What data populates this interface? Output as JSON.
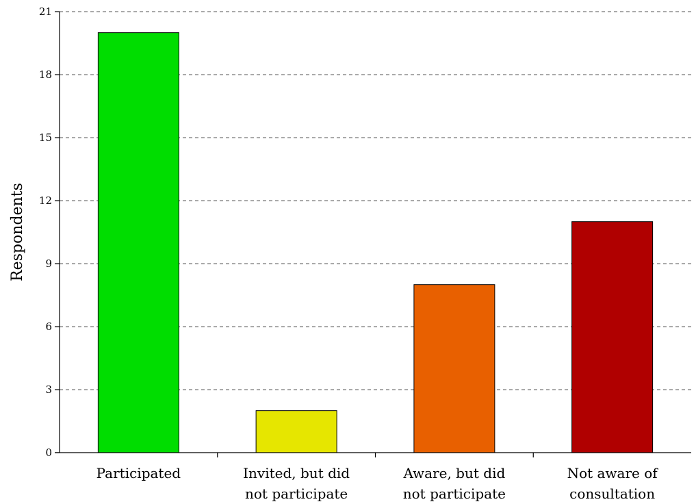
{
  "chart_data": {
    "type": "bar",
    "title": "",
    "xlabel": "",
    "ylabel": "Respondents",
    "ylim": [
      0,
      21
    ],
    "yticks": [
      0,
      3,
      6,
      9,
      12,
      15,
      18,
      21
    ],
    "grid": true,
    "categories": [
      [
        "Participated"
      ],
      [
        "Invited, but did",
        "not participate"
      ],
      [
        "Aware, but did",
        "not participate"
      ],
      [
        "Not aware of",
        "consultation"
      ]
    ],
    "values": [
      20,
      2,
      8,
      11
    ],
    "colors": [
      "#00dd00",
      "#e6e600",
      "#e86000",
      "#b00000"
    ]
  }
}
